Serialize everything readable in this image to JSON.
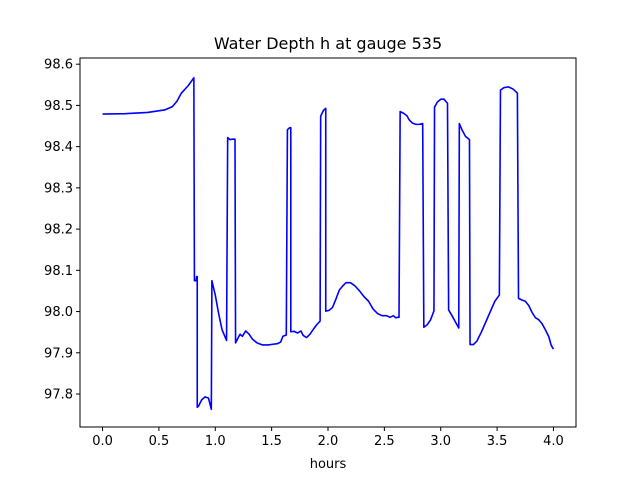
{
  "chart_data": {
    "type": "line",
    "title": "Water Depth h at gauge 535",
    "xlabel": "hours",
    "ylabel": "",
    "xlim": [
      -0.2,
      4.2
    ],
    "ylim": [
      97.72,
      98.615
    ],
    "xticks": [
      0.0,
      0.5,
      1.0,
      1.5,
      2.0,
      2.5,
      3.0,
      3.5,
      4.0
    ],
    "xtick_labels": [
      "0.0",
      "0.5",
      "1.0",
      "1.5",
      "2.0",
      "2.5",
      "3.0",
      "3.5",
      "4.0"
    ],
    "yticks": [
      97.8,
      97.9,
      98.0,
      98.1,
      98.2,
      98.3,
      98.4,
      98.5,
      98.6
    ],
    "ytick_labels": [
      "97.8",
      "97.9",
      "98.0",
      "98.1",
      "98.2",
      "98.3",
      "98.4",
      "98.5",
      "98.6"
    ],
    "grid": false,
    "legend": "none",
    "series": [
      {
        "color": "#0000ff",
        "points": [
          [
            0.0,
            98.479
          ],
          [
            0.2,
            98.48
          ],
          [
            0.4,
            98.483
          ],
          [
            0.55,
            98.489
          ],
          [
            0.62,
            98.497
          ],
          [
            0.66,
            98.51
          ],
          [
            0.7,
            98.53
          ],
          [
            0.76,
            98.548
          ],
          [
            0.81,
            98.567
          ],
          [
            0.815,
            98.075
          ],
          [
            0.83,
            98.075
          ],
          [
            0.835,
            98.085
          ],
          [
            0.84,
            98.085
          ],
          [
            0.84,
            97.768
          ],
          [
            0.85,
            97.77
          ],
          [
            0.88,
            97.786
          ],
          [
            0.91,
            97.793
          ],
          [
            0.94,
            97.79
          ],
          [
            0.965,
            97.763
          ],
          [
            0.97,
            98.075
          ],
          [
            1.0,
            98.04
          ],
          [
            1.03,
            97.995
          ],
          [
            1.06,
            97.956
          ],
          [
            1.1,
            97.93
          ],
          [
            1.11,
            98.422
          ],
          [
            1.13,
            98.417
          ],
          [
            1.15,
            98.418
          ],
          [
            1.175,
            98.418
          ],
          [
            1.18,
            97.924
          ],
          [
            1.2,
            97.935
          ],
          [
            1.22,
            97.945
          ],
          [
            1.24,
            97.94
          ],
          [
            1.27,
            97.953
          ],
          [
            1.3,
            97.945
          ],
          [
            1.33,
            97.933
          ],
          [
            1.37,
            97.924
          ],
          [
            1.42,
            97.919
          ],
          [
            1.47,
            97.919
          ],
          [
            1.52,
            97.921
          ],
          [
            1.55,
            97.922
          ],
          [
            1.58,
            97.926
          ],
          [
            1.6,
            97.94
          ],
          [
            1.63,
            97.943
          ],
          [
            1.64,
            98.441
          ],
          [
            1.66,
            98.446
          ],
          [
            1.67,
            98.446
          ],
          [
            1.67,
            97.951
          ],
          [
            1.7,
            97.952
          ],
          [
            1.73,
            97.948
          ],
          [
            1.76,
            97.953
          ],
          [
            1.78,
            97.942
          ],
          [
            1.81,
            97.937
          ],
          [
            1.84,
            97.945
          ],
          [
            1.87,
            97.957
          ],
          [
            1.9,
            97.968
          ],
          [
            1.93,
            97.977
          ],
          [
            1.935,
            98.474
          ],
          [
            1.96,
            98.488
          ],
          [
            1.98,
            98.493
          ],
          [
            1.98,
            98.001
          ],
          [
            2.01,
            98.003
          ],
          [
            2.04,
            98.01
          ],
          [
            2.07,
            98.03
          ],
          [
            2.1,
            98.052
          ],
          [
            2.13,
            98.062
          ],
          [
            2.16,
            98.07
          ],
          [
            2.2,
            98.07
          ],
          [
            2.24,
            98.062
          ],
          [
            2.28,
            98.05
          ],
          [
            2.32,
            98.036
          ],
          [
            2.36,
            98.025
          ],
          [
            2.4,
            98.006
          ],
          [
            2.44,
            97.995
          ],
          [
            2.48,
            97.99
          ],
          [
            2.52,
            97.99
          ],
          [
            2.55,
            97.986
          ],
          [
            2.58,
            97.99
          ],
          [
            2.6,
            97.985
          ],
          [
            2.62,
            97.986
          ],
          [
            2.63,
            97.986
          ],
          [
            2.64,
            98.485
          ],
          [
            2.67,
            98.481
          ],
          [
            2.7,
            98.475
          ],
          [
            2.72,
            98.465
          ],
          [
            2.75,
            98.457
          ],
          [
            2.78,
            98.454
          ],
          [
            2.81,
            98.454
          ],
          [
            2.84,
            98.456
          ],
          [
            2.85,
            97.962
          ],
          [
            2.88,
            97.968
          ],
          [
            2.91,
            97.98
          ],
          [
            2.94,
            98.002
          ],
          [
            2.945,
            98.496
          ],
          [
            2.97,
            98.508
          ],
          [
            3.0,
            98.515
          ],
          [
            3.03,
            98.515
          ],
          [
            3.06,
            98.505
          ],
          [
            3.07,
            98.004
          ],
          [
            3.1,
            97.99
          ],
          [
            3.13,
            97.975
          ],
          [
            3.16,
            97.96
          ],
          [
            3.165,
            98.456
          ],
          [
            3.19,
            98.44
          ],
          [
            3.22,
            98.425
          ],
          [
            3.255,
            98.417
          ],
          [
            3.26,
            97.92
          ],
          [
            3.29,
            97.92
          ],
          [
            3.32,
            97.928
          ],
          [
            3.36,
            97.95
          ],
          [
            3.4,
            97.975
          ],
          [
            3.44,
            98.0
          ],
          [
            3.48,
            98.025
          ],
          [
            3.52,
            98.04
          ],
          [
            3.53,
            98.537
          ],
          [
            3.56,
            98.543
          ],
          [
            3.6,
            98.545
          ],
          [
            3.64,
            98.54
          ],
          [
            3.68,
            98.53
          ],
          [
            3.69,
            98.032
          ],
          [
            3.72,
            98.028
          ],
          [
            3.75,
            98.025
          ],
          [
            3.78,
            98.015
          ],
          [
            3.81,
            97.998
          ],
          [
            3.84,
            97.985
          ],
          [
            3.87,
            97.98
          ],
          [
            3.9,
            97.97
          ],
          [
            3.93,
            97.955
          ],
          [
            3.96,
            97.938
          ],
          [
            3.98,
            97.918
          ],
          [
            4.0,
            97.909
          ]
        ]
      }
    ]
  }
}
